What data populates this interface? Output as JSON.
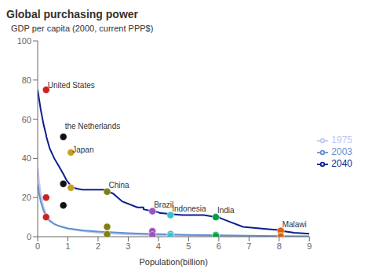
{
  "chart_data": {
    "type": "line",
    "title": "Global purchasing power",
    "xlabel": "Population(billion)",
    "ylabel": "GDP per capita (2000, current PPP$)",
    "xlim": [
      0,
      9
    ],
    "ylim": [
      0,
      100
    ],
    "xticks": [
      0,
      1,
      2,
      3,
      4,
      5,
      6,
      7,
      8,
      9
    ],
    "yticks": [
      0,
      20,
      40,
      60,
      80,
      100
    ],
    "legend": "right",
    "series": [
      {
        "name": "1975",
        "color": "#c0c8f0",
        "x": [
          0.0,
          0.05,
          0.1,
          0.18,
          0.28,
          0.4,
          0.55,
          0.7,
          0.85,
          1.0,
          1.2,
          1.5,
          2.0,
          2.5,
          3.0,
          3.5,
          4.0,
          4.5,
          5.0,
          5.5,
          6.0,
          6.5,
          7.0,
          7.5,
          8.0,
          8.5,
          9.0
        ],
        "values": [
          35,
          28,
          22,
          16,
          11,
          8.5,
          6.5,
          5.5,
          4.8,
          4.2,
          3.5,
          2.8,
          2.0,
          1.5,
          1.2,
          1.0,
          0.8,
          0.7,
          0.6,
          0.5,
          0.4,
          0.35,
          0.3,
          0.25,
          0.2,
          0.15,
          0.1
        ]
      },
      {
        "name": "2003",
        "color": "#6090d0",
        "x": [
          0.0,
          0.05,
          0.1,
          0.18,
          0.28,
          0.4,
          0.55,
          0.7,
          0.85,
          1.0,
          1.2,
          1.5,
          2.0,
          2.5,
          3.0,
          3.5,
          4.0,
          4.5,
          5.0,
          5.5,
          6.0,
          6.5,
          7.0,
          7.5,
          8.0,
          8.5,
          9.0
        ],
        "values": [
          27,
          22,
          18,
          14,
          10,
          8,
          6.5,
          5.5,
          4.8,
          4.2,
          3.8,
          3.2,
          2.6,
          2.2,
          1.8,
          1.5,
          1.3,
          1.1,
          0.9,
          0.8,
          0.7,
          0.6,
          0.5,
          0.4,
          0.3,
          0.25,
          0.2
        ]
      },
      {
        "name": "2040",
        "color": "#0a1f8f",
        "x": [
          0.0,
          0.1,
          0.2,
          0.28,
          0.29,
          0.4,
          0.55,
          0.7,
          0.85,
          0.95,
          1.0,
          1.05,
          1.1,
          1.15,
          1.2,
          1.3,
          1.5,
          1.8,
          2.0,
          2.2,
          2.25,
          2.3,
          2.35,
          2.5,
          2.8,
          3.3,
          3.5,
          3.51,
          3.8,
          4.0,
          4.05,
          4.1,
          4.4,
          4.8,
          5.0,
          5.5,
          5.9,
          6.0,
          6.05,
          6.3,
          6.8,
          7.5,
          7.9,
          8.0,
          8.05,
          8.5,
          9.0
        ],
        "values": [
          75,
          65,
          57,
          52,
          51,
          45,
          40,
          36,
          32,
          29,
          28,
          27,
          26,
          25.5,
          25,
          24.5,
          24,
          24,
          24,
          24,
          23.5,
          23,
          23,
          22,
          18,
          15,
          15,
          14,
          13,
          12.5,
          12,
          12,
          11.5,
          11,
          11,
          11,
          10,
          10,
          9.5,
          8,
          5,
          4,
          3.5,
          3.5,
          3,
          2,
          1.5
        ]
      }
    ],
    "markers": {
      "type": "scatter",
      "x": [
        0.28,
        0.28,
        0.28,
        0.85,
        0.85,
        0.85,
        1.1,
        1.1,
        2.3,
        2.3,
        2.3,
        3.8,
        3.8,
        3.8,
        4.4,
        4.4,
        4.4,
        5.9,
        5.9,
        5.9,
        8.05,
        8.05,
        8.05
      ],
      "values": [
        75,
        20,
        10,
        51,
        27,
        16,
        43,
        25,
        23,
        5.0,
        1.2,
        13,
        2.8,
        0.8,
        11,
        1.3,
        0.4,
        10,
        0.8,
        0.25,
        3.0,
        0.4,
        0.1
      ],
      "colors": [
        "#cc2222",
        "#cc2222",
        "#cc2222",
        "#111111",
        "#111111",
        "#111111",
        "#c8a020",
        "#c8a020",
        "#808010",
        "#808010",
        "#808010",
        "#a050c0",
        "#a050c0",
        "#a050c0",
        "#40c0c8",
        "#40c0c8",
        "#40c0c8",
        "#00a040",
        "#00a040",
        "#00a040",
        "#e06010",
        "#e06010",
        "#e06010"
      ]
    },
    "annotations": [
      {
        "text": "United States",
        "x": 0.33,
        "y": 76
      },
      {
        "text": "the Netherlands",
        "x": 0.9,
        "y": 55
      },
      {
        "text": "Japan",
        "x": 1.15,
        "y": 43
      },
      {
        "text": "China",
        "x": 2.35,
        "y": 25
      },
      {
        "text": "Brazil",
        "x": 3.85,
        "y": 15
      },
      {
        "text": "Indonesia",
        "x": 4.45,
        "y": 13
      },
      {
        "text": "India",
        "x": 5.95,
        "y": 12
      },
      {
        "text": "Malawi",
        "x": 8.1,
        "y": 5
      }
    ]
  }
}
